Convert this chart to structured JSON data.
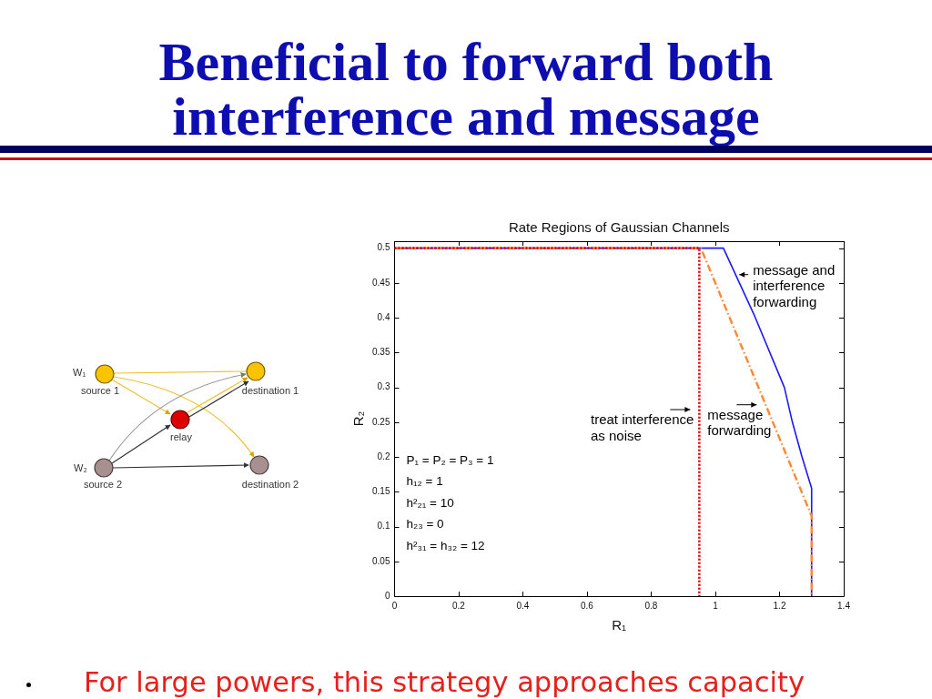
{
  "chart_data": {
    "type": "line",
    "title": "Beneficial to forward both interference and message",
    "subtitle": "Rate Regions of Gaussian Channels",
    "xlabel": "R₁",
    "ylabel": "R₂",
    "xlim": [
      0,
      1.4
    ],
    "ylim": [
      0,
      0.51
    ],
    "xticks": [
      0,
      0.2,
      0.4,
      0.6,
      0.8,
      1,
      1.2,
      1.4
    ],
    "yticks": [
      0,
      0.05,
      0.1,
      0.15,
      0.2,
      0.25,
      0.3,
      0.35,
      0.4,
      0.45,
      0.5
    ],
    "series": [
      {
        "color": "#1a1aff",
        "line_style": "solid",
        "x": [
          0,
          1.025,
          1.12,
          1.215,
          1.24,
          1.27,
          1.3,
          1.3
        ],
        "values": [
          0.5,
          0.5,
          0.405,
          0.3,
          0.25,
          0.2,
          0.155,
          0
        ]
      },
      {
        "color": "#ff8833",
        "line_style": "dashed",
        "x": [
          0,
          0.955,
          1.3,
          1.3
        ],
        "values": [
          0.5,
          0.5,
          0.115,
          0
        ]
      },
      {
        "color": "#dd0000",
        "line_style": "dotted",
        "x": [
          0,
          0.95,
          0.95
        ],
        "values": [
          0.5,
          0.5,
          0
        ]
      }
    ],
    "annotations": [
      "W₁",
      "source 1",
      "destination 1",
      "relay",
      "W₂",
      "source 2",
      "destination 2",
      "P₁ = P₂ = P₃ = 1\nh₁₂ = 1\nh²₂₁ = 10\nh₂₃ = 0\nh²₃₁ = h₃₂ = 12",
      {
        "text": "treat interference\nas noise",
        "x": 0.95,
        "y": 0.268
      },
      {
        "text": "message\nforwarding",
        "x": 1.157,
        "y": 0.275
      },
      {
        "text": "message and\ninterference\nforwarding",
        "x": 1.063,
        "y": 0.462
      },
      "For large powers, this strategy approaches capacity"
    ]
  }
}
